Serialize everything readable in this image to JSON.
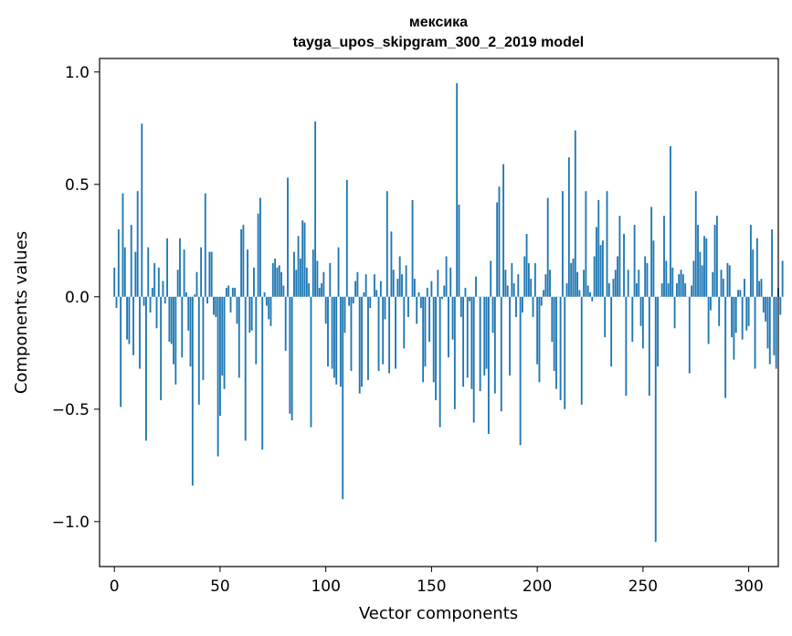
{
  "chart_data": {
    "type": "bar",
    "title_line1": "мексика",
    "title_line2": "tayga_upos_skipgram_300_2_2019 model",
    "xlabel": "Vector components",
    "ylabel": "Components values",
    "xlim": [
      -7,
      314
    ],
    "ylim": [
      -1.2,
      1.06
    ],
    "xticks": [
      0,
      50,
      100,
      150,
      200,
      250,
      300
    ],
    "xtick_labels": [
      "0",
      "50",
      "100",
      "150",
      "200",
      "250",
      "300"
    ],
    "yticks": [
      -1.0,
      -0.5,
      0.0,
      0.5,
      1.0
    ],
    "ytick_labels": [
      "−1.0",
      "−0.5",
      "0.0",
      "0.5",
      "1.0"
    ],
    "bar_color": "#1f77b4",
    "grid": false,
    "values": [
      0.13,
      -0.05,
      0.3,
      -0.49,
      0.46,
      0.22,
      -0.19,
      -0.21,
      0.32,
      -0.26,
      0.2,
      0.47,
      -0.32,
      0.77,
      -0.04,
      -0.64,
      0.22,
      -0.07,
      0.04,
      0.15,
      -0.14,
      0.13,
      -0.46,
      0.07,
      -0.03,
      0.26,
      -0.2,
      -0.21,
      -0.3,
      -0.39,
      0.12,
      0.26,
      -0.27,
      0.21,
      0.02,
      -0.15,
      -0.31,
      -0.84,
      0.01,
      0.11,
      -0.48,
      0.22,
      -0.37,
      0.46,
      -0.03,
      0.2,
      0.2,
      -0.08,
      -0.09,
      -0.71,
      -0.53,
      -0.35,
      -0.41,
      0.04,
      0.05,
      -0.07,
      0.04,
      0.04,
      -0.12,
      -0.36,
      0.3,
      0.32,
      -0.64,
      0.21,
      -0.16,
      -0.15,
      0.13,
      -0.3,
      0.37,
      0.44,
      -0.68,
      0.02,
      -0.04,
      -0.1,
      -0.13,
      0.15,
      0.17,
      0.13,
      0.14,
      0.11,
      0.05,
      -0.24,
      0.53,
      -0.52,
      -0.55,
      0.2,
      0.12,
      0.27,
      0.17,
      0.34,
      0.33,
      0.13,
      0.06,
      -0.58,
      0.21,
      0.78,
      0.16,
      0.04,
      0.06,
      0.11,
      -0.12,
      -0.31,
      0.15,
      -0.32,
      -0.36,
      -0.39,
      0.22,
      -0.4,
      -0.9,
      -0.16,
      0.52,
      -0.04,
      -0.33,
      -0.03,
      0.07,
      0.11,
      -0.43,
      -0.4,
      0.02,
      0.1,
      -0.37,
      -0.05,
      0.0,
      0.1,
      0.03,
      -0.33,
      0.07,
      -0.3,
      -0.1,
      0.47,
      -0.34,
      0.29,
      0.12,
      -0.32,
      0.08,
      0.18,
      0.1,
      -0.23,
      0.14,
      -0.09,
      0.0,
      0.43,
      0.08,
      -0.12,
      0.02,
      -0.05,
      -0.38,
      -0.31,
      0.04,
      -0.2,
      0.07,
      -0.38,
      -0.46,
      0.12,
      -0.58,
      -0.01,
      0.05,
      0.18,
      -0.27,
      0.13,
      -0.19,
      -0.5,
      0.95,
      0.41,
      -0.09,
      -0.4,
      0.04,
      -0.36,
      -0.02,
      -0.41,
      -0.56,
      0.09,
      0.0,
      -0.42,
      0.0,
      -0.35,
      -0.32,
      -0.61,
      0.16,
      -0.16,
      -0.43,
      0.42,
      0.49,
      -0.51,
      0.59,
      0.12,
      0.05,
      -0.35,
      0.15,
      0.06,
      -0.09,
      0.1,
      -0.66,
      -0.07,
      0.18,
      0.28,
      0.15,
      0.08,
      -0.09,
      0.15,
      -0.3,
      -0.38,
      -0.04,
      0.03,
      0.1,
      0.44,
      0.12,
      -0.2,
      -0.33,
      -0.41,
      0.0,
      -0.46,
      0.47,
      -0.5,
      0.06,
      0.62,
      0.15,
      0.17,
      0.74,
      0.11,
      0.03,
      -0.48,
      0.12,
      0.47,
      0.05,
      0.02,
      -0.02,
      0.18,
      0.31,
      0.43,
      0.23,
      0.25,
      -0.18,
      0.47,
      0.06,
      -0.31,
      0.08,
      0.12,
      0.18,
      0.36,
      0.0,
      0.28,
      -0.44,
      0.12,
      0.0,
      -0.2,
      0.32,
      0.06,
      0.12,
      -0.13,
      -0.23,
      0.18,
      0.15,
      -0.44,
      0.4,
      0.25,
      -1.09,
      -0.31,
      0.0,
      0.06,
      0.36,
      0.16,
      0.06,
      0.67,
      0.13,
      -0.14,
      0.06,
      0.1,
      0.12,
      0.1,
      0.06,
      0.0,
      -0.34,
      0.05,
      0.16,
      0.47,
      0.32,
      0.2,
      0.14,
      0.27,
      0.26,
      -0.21,
      -0.06,
      0.11,
      0.32,
      0.36,
      -0.13,
      0.12,
      0.08,
      -0.45,
      0.15,
      0.14,
      -0.18,
      -0.28,
      -0.16,
      0.03,
      0.03,
      -0.19,
      0.08,
      -0.15,
      -0.13,
      0.32,
      0.21,
      -0.32,
      0.26,
      0.07,
      0.08,
      -0.07,
      -0.11,
      -0.23,
      -0.3,
      0.3,
      -0.26,
      -0.32,
      0.04,
      -0.08,
      0.16
    ]
  }
}
